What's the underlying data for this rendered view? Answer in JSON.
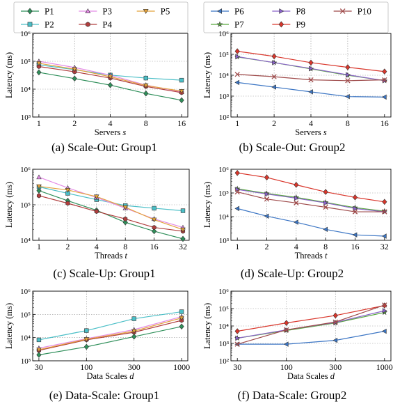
{
  "legends": [
    {
      "entries": [
        {
          "label": "P1",
          "color": "#2f8f5a",
          "marker": "diamond"
        },
        {
          "label": "P3",
          "color": "#e48ce6",
          "marker": "triangle-up"
        },
        {
          "label": "P5",
          "color": "#e4a23c",
          "marker": "triangle-down"
        },
        {
          "label": "P2",
          "color": "#4bbfc7",
          "marker": "square"
        },
        {
          "label": "P4",
          "color": "#b03d3d",
          "marker": "hexagon"
        }
      ]
    },
    {
      "entries": [
        {
          "label": "P6",
          "color": "#3b75c4",
          "marker": "triangle-left"
        },
        {
          "label": "P8",
          "color": "#8a63c9",
          "marker": "triangle-right"
        },
        {
          "label": "P10",
          "color": "#9e4a4a",
          "marker": "x"
        },
        {
          "label": "P7",
          "color": "#57a83c",
          "marker": "star"
        },
        {
          "label": "P9",
          "color": "#d9362b",
          "marker": "diamond"
        }
      ]
    }
  ],
  "chart_data": [
    {
      "type": "line",
      "caption": "(a) Scale-Out: Group1",
      "xlabel": "Servers",
      "xvar": "s",
      "ylabel": "Latency (ms)",
      "yscale": "log",
      "x": [
        "1",
        "2",
        "4",
        "8",
        "16"
      ],
      "ylim_exp": [
        3,
        6
      ],
      "grid": true,
      "series": [
        {
          "name": "P1",
          "values": [
            40000,
            24000,
            14000,
            7000,
            4000
          ]
        },
        {
          "name": "P2",
          "values": [
            75000,
            50000,
            32000,
            25000,
            21000
          ]
        },
        {
          "name": "P3",
          "values": [
            100000,
            60000,
            32000,
            14000,
            8000
          ]
        },
        {
          "name": "P4",
          "values": [
            65000,
            42000,
            25000,
            12500,
            7500
          ]
        },
        {
          "name": "P5",
          "values": [
            85000,
            52000,
            28000,
            13500,
            8500
          ]
        }
      ]
    },
    {
      "type": "line",
      "caption": "(b) Scale-Out: Group2",
      "xlabel": "Servers",
      "xvar": "s",
      "ylabel": "Latency (ms)",
      "yscale": "log",
      "x": [
        "1",
        "2",
        "4",
        "8",
        "16"
      ],
      "ylim_exp": [
        2,
        6
      ],
      "grid": true,
      "series": [
        {
          "name": "P6",
          "values": [
            4500,
            2700,
            1600,
            950,
            900
          ]
        },
        {
          "name": "P7",
          "values": [
            75000,
            40000,
            20000,
            10000,
            5500
          ]
        },
        {
          "name": "P8",
          "values": [
            78000,
            40000,
            21000,
            10500,
            5500
          ]
        },
        {
          "name": "P9",
          "values": [
            140000,
            80000,
            40000,
            24000,
            15000
          ]
        },
        {
          "name": "P10",
          "values": [
            11000,
            8500,
            6000,
            5500,
            6000
          ]
        }
      ]
    },
    {
      "type": "line",
      "caption": "(c) Scale-Up: Group1",
      "xlabel": "Threads",
      "xvar": "t",
      "ylabel": "Latency (ms)",
      "yscale": "log",
      "x": [
        "1",
        "2",
        "4",
        "8",
        "16",
        "32"
      ],
      "ylim_exp": [
        4,
        6
      ],
      "grid": true,
      "series": [
        {
          "name": "P1",
          "values": [
            250000,
            130000,
            70000,
            32000,
            18000,
            11000
          ]
        },
        {
          "name": "P2",
          "values": [
            320000,
            210000,
            140000,
            95000,
            80000,
            68000
          ]
        },
        {
          "name": "P3",
          "values": [
            600000,
            300000,
            160000,
            80000,
            40000,
            23000
          ]
        },
        {
          "name": "P4",
          "values": [
            180000,
            110000,
            65000,
            40000,
            23000,
            18000
          ]
        },
        {
          "name": "P5",
          "values": [
            330000,
            260000,
            170000,
            85000,
            38000,
            20000
          ]
        }
      ]
    },
    {
      "type": "line",
      "caption": "(d) Scale-Up: Group2",
      "xlabel": "Threads",
      "xvar": "t",
      "ylabel": "Latency (ms)",
      "yscale": "log",
      "x": [
        "1",
        "2",
        "4",
        "8",
        "16",
        "32"
      ],
      "ylim_exp": [
        3,
        6
      ],
      "grid": true,
      "series": [
        {
          "name": "P6",
          "values": [
            22000,
            10500,
            5800,
            2900,
            1700,
            1500
          ]
        },
        {
          "name": "P7",
          "values": [
            150000,
            95000,
            65000,
            40000,
            24000,
            17000
          ]
        },
        {
          "name": "P8",
          "values": [
            140000,
            90000,
            60000,
            38000,
            22000,
            16000
          ]
        },
        {
          "name": "P9",
          "values": [
            700000,
            450000,
            220000,
            110000,
            65000,
            42000
          ]
        },
        {
          "name": "P10",
          "values": [
            110000,
            55000,
            38000,
            25000,
            16000,
            16000
          ]
        }
      ]
    },
    {
      "type": "line",
      "caption": "(e) Data-Scale: Group1",
      "xlabel": "Data Scales",
      "xvar": "d",
      "ylabel": "Latency (ms)",
      "yscale": "log",
      "x": [
        "30",
        "100",
        "300",
        "1000"
      ],
      "ylim_exp": [
        3,
        6
      ],
      "grid": true,
      "series": [
        {
          "name": "P1",
          "values": [
            1800,
            4000,
            11000,
            30000
          ]
        },
        {
          "name": "P2",
          "values": [
            8000,
            20000,
            65000,
            130000
          ]
        },
        {
          "name": "P3",
          "values": [
            3500,
            9000,
            22000,
            80000
          ]
        },
        {
          "name": "P4",
          "values": [
            2800,
            8000,
            17000,
            55000
          ]
        },
        {
          "name": "P5",
          "values": [
            3000,
            8500,
            19000,
            70000
          ]
        }
      ]
    },
    {
      "type": "line",
      "caption": "(f) Data-Scale: Group2",
      "xlabel": "Data Scales",
      "xvar": "d",
      "ylabel": "Latency (ms)",
      "yscale": "log",
      "x": [
        "30",
        "100",
        "300",
        "1000"
      ],
      "ylim_exp": [
        2,
        6
      ],
      "grid": true,
      "series": [
        {
          "name": "P6",
          "values": [
            900,
            900,
            1500,
            5000
          ]
        },
        {
          "name": "P7",
          "values": [
            2000,
            5500,
            15000,
            60000
          ]
        },
        {
          "name": "P8",
          "values": [
            2000,
            6000,
            16000,
            75000
          ]
        },
        {
          "name": "P9",
          "values": [
            5000,
            15000,
            40000,
            150000
          ]
        },
        {
          "name": "P10",
          "values": [
            900,
            6000,
            17000,
            160000
          ]
        }
      ]
    }
  ]
}
